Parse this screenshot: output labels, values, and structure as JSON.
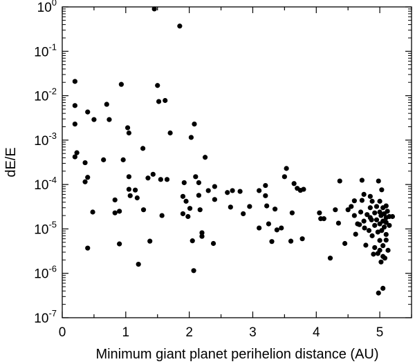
{
  "chart_data": {
    "type": "scatter",
    "title": "",
    "xlabel": "Minimum giant planet perihelion distance (AU)",
    "ylabel": "dE/E",
    "xlim": [
      0,
      5.5
    ],
    "ylim": [
      1e-07,
      1
    ],
    "yscale": "log",
    "grid": false,
    "legend": "none",
    "marker_color": "#000000",
    "x_ticks": [
      {
        "value": 0,
        "label": "0"
      },
      {
        "value": 1,
        "label": "1"
      },
      {
        "value": 2,
        "label": "2"
      },
      {
        "value": 3,
        "label": "3"
      },
      {
        "value": 4,
        "label": "4"
      },
      {
        "value": 5,
        "label": "5"
      }
    ],
    "y_ticks": [
      {
        "value": 1,
        "base": "10",
        "exp": "0"
      },
      {
        "value": 0.1,
        "base": "10",
        "exp": "-1"
      },
      {
        "value": 0.01,
        "base": "10",
        "exp": "-2"
      },
      {
        "value": 0.001,
        "base": "10",
        "exp": "-3"
      },
      {
        "value": 0.0001,
        "base": "10",
        "exp": "-4"
      },
      {
        "value": 1e-05,
        "base": "10",
        "exp": "-5"
      },
      {
        "value": 1e-06,
        "base": "10",
        "exp": "-6"
      },
      {
        "value": 1e-07,
        "base": "10",
        "exp": "-7"
      }
    ],
    "series": [
      {
        "points": [
          [
            0.2,
            0.021
          ],
          [
            0.2,
            0.006
          ],
          [
            0.2,
            0.0023
          ],
          [
            0.2,
            0.00042
          ],
          [
            0.23,
            0.00052
          ],
          [
            0.36,
            0.00031
          ],
          [
            0.36,
            0.000115
          ],
          [
            0.4,
            0.0043
          ],
          [
            0.4,
            0.000145
          ],
          [
            0.4,
            3.7e-06
          ],
          [
            0.48,
            2.4e-05
          ],
          [
            0.5,
            0.0029
          ],
          [
            0.65,
            0.00036
          ],
          [
            0.7,
            0.0064
          ],
          [
            0.74,
            0.0029
          ],
          [
            0.83,
            2.3e-05
          ],
          [
            0.83,
            4.5e-05
          ],
          [
            0.9,
            2.5e-05
          ],
          [
            0.9,
            4.6e-06
          ],
          [
            0.93,
            0.018
          ],
          [
            0.96,
            0.00036
          ],
          [
            1.03,
            0.0019
          ],
          [
            1.05,
            0.00145
          ],
          [
            1.05,
            0.00015
          ],
          [
            1.05,
            7.8e-05
          ],
          [
            1.07,
            5.6e-05
          ],
          [
            1.15,
            7.5e-05
          ],
          [
            1.18,
            5e-05
          ],
          [
            1.2,
            1.6e-06
          ],
          [
            1.27,
            0.00065
          ],
          [
            1.28,
            2.7e-05
          ],
          [
            1.35,
            0.00014
          ],
          [
            1.38,
            5.3e-06
          ],
          [
            1.43,
            0.00017
          ],
          [
            1.45,
            0.9
          ],
          [
            1.5,
            0.017
          ],
          [
            1.52,
            0.0074
          ],
          [
            1.55,
            0.00013
          ],
          [
            1.57,
            2e-05
          ],
          [
            1.62,
            0.0078
          ],
          [
            1.65,
            0.00013
          ],
          [
            1.7,
            0.00145
          ],
          [
            1.85,
            0.37
          ],
          [
            1.9,
            5.4e-05
          ],
          [
            1.9,
            2.2e-05
          ],
          [
            1.92,
            0.00011
          ],
          [
            1.95,
            4.2e-05
          ],
          [
            1.98,
            1.9e-05
          ],
          [
            2.01,
            2.9e-05
          ],
          [
            2.03,
            0.00115
          ],
          [
            2.05,
            5.4e-06
          ],
          [
            2.07,
            1.15e-06
          ],
          [
            2.08,
            0.0023
          ],
          [
            2.1,
            0.00015
          ],
          [
            2.15,
            5.7e-05
          ],
          [
            2.15,
            0.00011
          ],
          [
            2.17,
            2.7e-05
          ],
          [
            2.2,
            6.8e-06
          ],
          [
            2.2,
            8.2e-06
          ],
          [
            2.25,
            0.00041
          ],
          [
            2.3,
            7.3e-05
          ],
          [
            2.38,
            4.7e-06
          ],
          [
            2.4,
            9e-05
          ],
          [
            2.4,
            4.6e-05
          ],
          [
            2.6,
            6.6e-05
          ],
          [
            2.65,
            3.1e-05
          ],
          [
            2.68,
            7.3e-05
          ],
          [
            2.8,
            7e-05
          ],
          [
            2.85,
            2.2e-05
          ],
          [
            2.95,
            3.2e-05
          ],
          [
            3.1,
            1.05e-05
          ],
          [
            3.1,
            7.3e-05
          ],
          [
            3.2,
            9.5e-05
          ],
          [
            3.2,
            5.6e-05
          ],
          [
            3.22,
            3.3e-05
          ],
          [
            3.25,
            1.3e-05
          ],
          [
            3.3,
            5.2e-06
          ],
          [
            3.35,
            2.8e-05
          ],
          [
            3.38,
            9.5e-06
          ],
          [
            3.45,
            1.05e-05
          ],
          [
            3.5,
            0.00015
          ],
          [
            3.53,
            0.00023
          ],
          [
            3.6,
            5.3e-06
          ],
          [
            3.62,
            2.3e-05
          ],
          [
            3.65,
            0.000105
          ],
          [
            3.7,
            8.2e-05
          ],
          [
            3.75,
            7.4e-05
          ],
          [
            3.78,
            6e-06
          ],
          [
            3.8,
            7.8e-05
          ],
          [
            4.05,
            2.3e-05
          ],
          [
            4.07,
            1.7e-05
          ],
          [
            4.12,
            1.7e-05
          ],
          [
            4.22,
            2.2e-06
          ],
          [
            4.3,
            2.7e-05
          ],
          [
            4.35,
            1.35e-05
          ],
          [
            4.37,
            0.00012
          ],
          [
            4.45,
            4.7e-06
          ],
          [
            4.5,
            2.7e-05
          ],
          [
            4.55,
            3.2e-05
          ],
          [
            4.6,
            2e-05
          ],
          [
            4.6,
            4.3e-05
          ],
          [
            4.62,
            7.6e-06
          ],
          [
            4.65,
            1.3e-05
          ],
          [
            4.68,
            1.25e-05
          ],
          [
            4.7,
            2.4e-05
          ],
          [
            4.72,
            0.000125
          ],
          [
            4.72,
            4.4e-05
          ],
          [
            4.75,
            6e-05
          ],
          [
            4.75,
            1.5e-05
          ],
          [
            4.76,
            1.05e-05
          ],
          [
            4.78,
            4.3e-06
          ],
          [
            4.8,
            2.1e-05
          ],
          [
            4.83,
            9.2e-06
          ],
          [
            4.85,
            5.4e-05
          ],
          [
            4.85,
            3e-05
          ],
          [
            4.85,
            1.8e-05
          ],
          [
            4.87,
            1.6e-05
          ],
          [
            4.88,
            4.2e-05
          ],
          [
            4.88,
            7e-06
          ],
          [
            4.9,
            2.7e-06
          ],
          [
            4.92,
            2.3e-05
          ],
          [
            4.92,
            1.2e-05
          ],
          [
            4.92,
            3.8e-06
          ],
          [
            4.95,
            3.2e-05
          ],
          [
            4.95,
            1.6e-05
          ],
          [
            4.97,
            8.5e-06
          ],
          [
            4.97,
            2.8e-06
          ],
          [
            4.98,
            0.00012
          ],
          [
            4.98,
            3.6e-07
          ],
          [
            5.0,
            4.2e-05
          ],
          [
            5.0,
            2.4e-05
          ],
          [
            5.0,
            1.3e-05
          ],
          [
            5.0,
            5.5e-06
          ],
          [
            5.0,
            3.3e-06
          ],
          [
            5.02,
            2e-05
          ],
          [
            5.02,
            1.8e-06
          ],
          [
            5.03,
            7.6e-05
          ],
          [
            5.03,
            9.2e-06
          ],
          [
            5.05,
            3e-05
          ],
          [
            5.05,
            1.5e-05
          ],
          [
            5.05,
            4.2e-06
          ],
          [
            5.05,
            2.4e-06
          ],
          [
            5.05,
            4.6e-07
          ],
          [
            5.07,
            2.2e-05
          ],
          [
            5.07,
            1.1e-05
          ],
          [
            5.08,
            2.2e-06
          ],
          [
            5.1,
            3.3e-05
          ],
          [
            5.1,
            1.8e-05
          ],
          [
            5.1,
            1.4e-05
          ],
          [
            5.1,
            7.5e-06
          ],
          [
            5.1,
            5.6e-06
          ],
          [
            5.12,
            2.5e-05
          ],
          [
            5.13,
            3.3e-06
          ],
          [
            5.15,
            1.9e-05
          ],
          [
            5.15,
            1.2e-05
          ],
          [
            5.2,
            1.9e-05
          ]
        ]
      }
    ]
  }
}
